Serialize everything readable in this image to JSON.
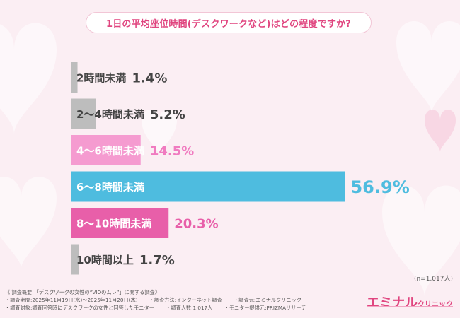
{
  "title": "1日の平均座位時間(デスクワークなど)はどの程度ですか?",
  "sample_note": "(n=1,017人)",
  "footer": {
    "line1": "《 調査概要:「デスクワークの女性の“VIOのムレ”」に関する調査》",
    "period": "・調査期間:2025年11月19日(水)～2025年11月20日(木)",
    "method": "・調査方法:インターネット調査",
    "organizer": "・調査元:エミナルクリニック",
    "target": "・調査対象:調査回答時にデスクワークの女性と回答したモニター",
    "count": "・調査人数:1,017人",
    "provider": "・モニター提供元:PRIZMAリサーチ"
  },
  "logo": {
    "main": "エミナル",
    "sub": "クリニック"
  },
  "colors": {
    "accent": "#e0457f",
    "gray": "#bdbdbd",
    "light_pink": "#f59bd0",
    "blue": "#4ebcdf",
    "pink": "#e85fa9"
  },
  "chart_data": {
    "type": "bar",
    "orientation": "horizontal",
    "categories": [
      "2時間未満",
      "2～4時間未満",
      "4～6時間未満",
      "6～8時間未満",
      "8～10時間未満",
      "10時間以上"
    ],
    "values": [
      1.4,
      5.2,
      14.5,
      56.9,
      20.3,
      1.7
    ],
    "value_labels": [
      "1.4%",
      "5.2%",
      "14.5%",
      "56.9%",
      "20.3%",
      "1.7%"
    ],
    "bar_colors": [
      "#bdbdbd",
      "#bdbdbd",
      "#f59bd0",
      "#4ebcdf",
      "#e85fa9",
      "#bdbdbd"
    ],
    "label_colors": [
      "#444444",
      "#444444",
      "#ffffff",
      "#ffffff",
      "#ffffff",
      "#444444"
    ],
    "value_colors": [
      "#444444",
      "#444444",
      "#f07bc0",
      "#4ebcdf",
      "#e85fa9",
      "#444444"
    ],
    "xlim": [
      0,
      100
    ]
  }
}
